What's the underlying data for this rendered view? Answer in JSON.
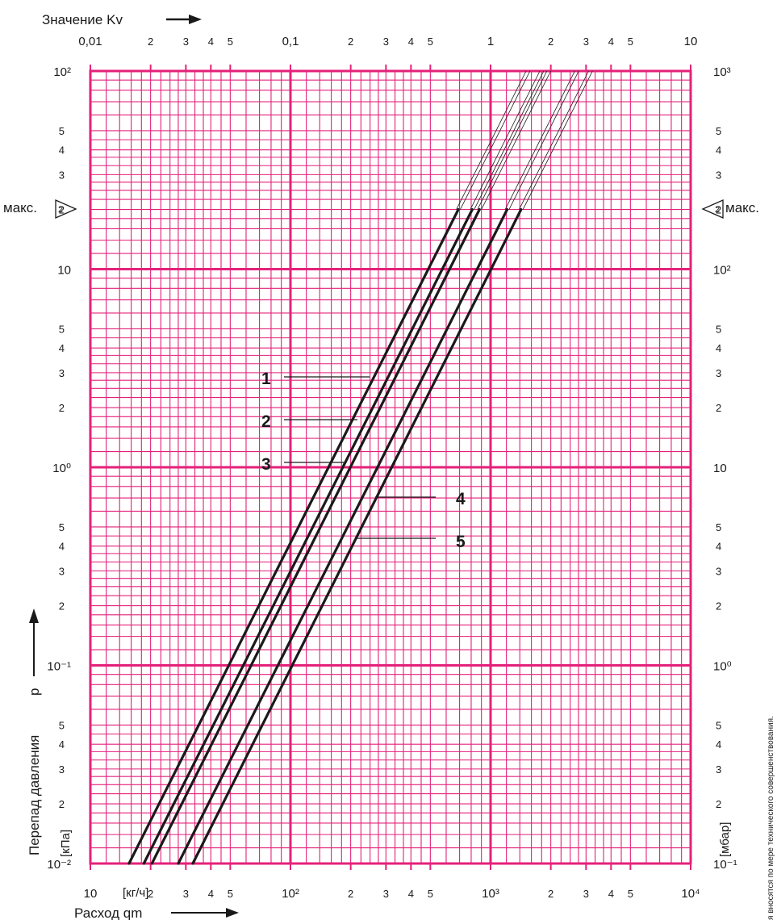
{
  "chart_data": {
    "type": "line",
    "grid": true,
    "scale": "log-log",
    "top_axis": {
      "title": "Значение Kv",
      "range": [
        0.01,
        10
      ],
      "major_labels": [
        "0,01",
        "0,1",
        "1",
        "10"
      ],
      "minor_labels": [
        "2",
        "3",
        "4",
        "5"
      ]
    },
    "bottom_axis": {
      "title": "Расход qm",
      "unit": "[кг/ч]",
      "range": [
        10,
        10000
      ],
      "major_labels": [
        "10",
        "10²",
        "10³",
        "10⁴"
      ],
      "minor_labels": [
        "2",
        "3",
        "4",
        "5"
      ]
    },
    "left_axis": {
      "title": "Перепад давления",
      "symbol": "p",
      "unit": "[кПа]",
      "range": [
        0.01,
        100
      ],
      "major_labels": [
        "10⁻²",
        "10⁻¹",
        "10⁰",
        "10",
        "10²"
      ],
      "minor_labels": [
        "2",
        "3",
        "4",
        "5"
      ]
    },
    "right_axis": {
      "unit": "[мбар]",
      "range": [
        0.1,
        1000
      ],
      "major_labels": [
        "10⁻¹",
        "10⁰",
        "10",
        "10²",
        "10³"
      ],
      "minor_labels": [
        "2",
        "3",
        "4",
        "5"
      ]
    },
    "max_marker": {
      "label": "макс.",
      "value_kpa": 20,
      "symbol": "2"
    },
    "series": [
      {
        "name": "1",
        "q_at_min": 15.6,
        "q_at_max": 690
      },
      {
        "name": "2",
        "q_at_min": 18.5,
        "q_at_max": 810
      },
      {
        "name": "3",
        "q_at_min": 20.3,
        "q_at_max": 880
      },
      {
        "name": "4",
        "q_at_min": 27.5,
        "q_at_max": 1210
      },
      {
        "name": "5",
        "q_at_min": 32.5,
        "q_at_max": 1420
      }
    ],
    "p_solid_range": [
      0.01,
      20
    ],
    "p_thin_extension_to": 100
  },
  "side_note": "я вносятся по мере технического совершенствования."
}
